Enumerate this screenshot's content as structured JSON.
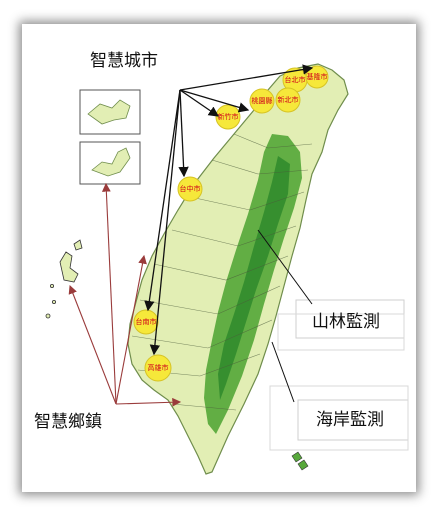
{
  "labels": {
    "smart_city": "智慧城市",
    "smart_township": "智慧鄉鎮",
    "forest_monitoring": "山林監測",
    "coast_monitoring": "海岸監測"
  },
  "cities": {
    "taipei": "台北市",
    "keelung": "基隆市",
    "taoyuan": "桃園縣",
    "new_taipei": "新北市",
    "hsinchu": "新竹市",
    "taichung": "台中市",
    "tainan": "台南市",
    "kaohsiung": "高雄市"
  },
  "colors": {
    "land": "#e2eeb4",
    "mountain": "#57a83b",
    "mountain_high": "#2f8a2b",
    "city_marker": "#f6e83a",
    "arrow_black": "#111111",
    "arrow_red": "#9a3b3b"
  }
}
